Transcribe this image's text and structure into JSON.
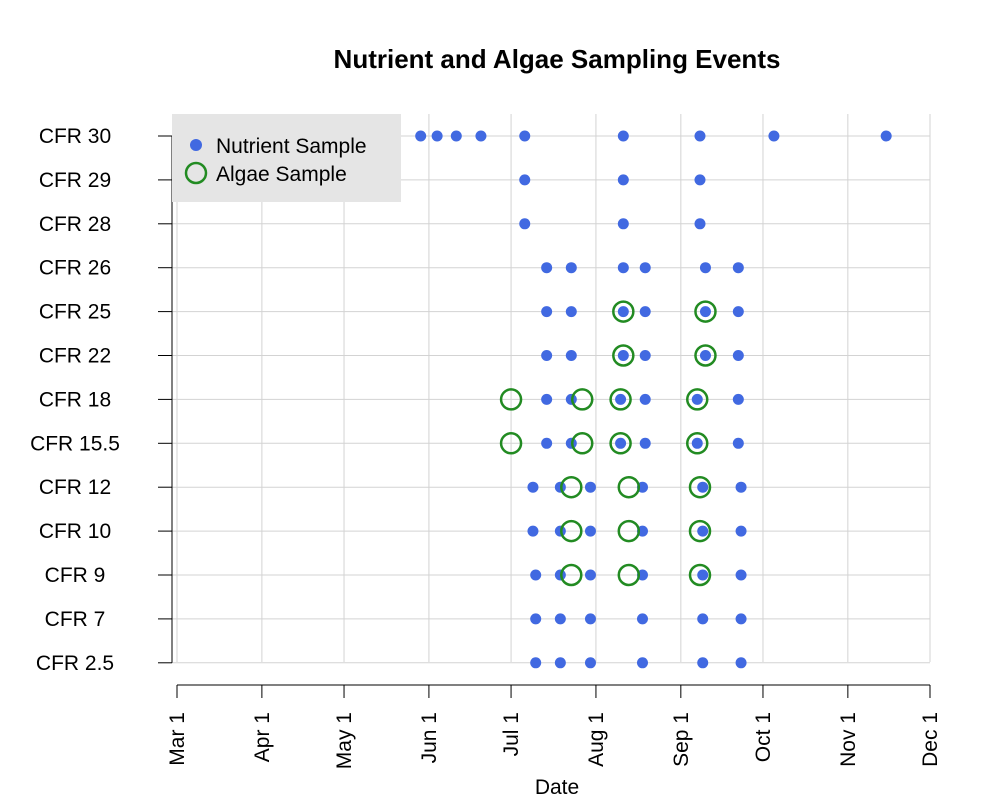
{
  "chart_data": {
    "type": "scatter",
    "title": "Nutrient and Algae Sampling Events",
    "xlabel": "Date",
    "ylabel": "",
    "x_axis": {
      "range": [
        "2023-03-01",
        "2023-12-01"
      ],
      "tick_dates": [
        "2023-03-01",
        "2023-04-01",
        "2023-05-01",
        "2023-06-01",
        "2023-07-01",
        "2023-08-01",
        "2023-09-01",
        "2023-10-01",
        "2023-11-01",
        "2023-12-01"
      ],
      "tick_labels": [
        "Mar 1",
        "Apr 1",
        "May 1",
        "Jun 1",
        "Jul 1",
        "Aug 1",
        "Sep 1",
        "Oct 1",
        "Nov 1",
        "Dec 1"
      ]
    },
    "stations": [
      "CFR 30",
      "CFR 29",
      "CFR 28",
      "CFR 26",
      "CFR 25",
      "CFR 22",
      "CFR 18",
      "CFR 15.5",
      "CFR 12",
      "CFR 10",
      "CFR 9",
      "CFR 7",
      "CFR 2.5"
    ],
    "grid": true,
    "legend": {
      "placement": "top-left",
      "entries": [
        {
          "label": "Nutrient Sample",
          "marker": "filled-circle",
          "color": "#4169E1"
        },
        {
          "label": "Algae Sample",
          "marker": "open-circle",
          "color": "#228B22"
        }
      ]
    },
    "series": [
      {
        "name": "Nutrient Sample",
        "color": "#4169E1",
        "points": [
          {
            "station": "CFR 30",
            "dates": [
              "2023-05-29",
              "2023-06-04",
              "2023-06-11",
              "2023-06-20",
              "2023-07-06",
              "2023-08-11",
              "2023-09-08",
              "2023-10-05",
              "2023-11-15"
            ]
          },
          {
            "station": "CFR 29",
            "dates": [
              "2023-07-06",
              "2023-08-11",
              "2023-09-08"
            ]
          },
          {
            "station": "CFR 28",
            "dates": [
              "2023-07-06",
              "2023-08-11",
              "2023-09-08"
            ]
          },
          {
            "station": "CFR 26",
            "dates": [
              "2023-07-14",
              "2023-07-23",
              "2023-08-11",
              "2023-08-19",
              "2023-09-10",
              "2023-09-22"
            ]
          },
          {
            "station": "CFR 25",
            "dates": [
              "2023-07-14",
              "2023-07-23",
              "2023-08-11",
              "2023-08-19",
              "2023-09-10",
              "2023-09-22"
            ]
          },
          {
            "station": "CFR 22",
            "dates": [
              "2023-07-14",
              "2023-07-23",
              "2023-08-11",
              "2023-08-19",
              "2023-09-10",
              "2023-09-22"
            ]
          },
          {
            "station": "CFR 18",
            "dates": [
              "2023-07-14",
              "2023-07-23",
              "2023-08-10",
              "2023-08-19",
              "2023-09-07",
              "2023-09-22"
            ]
          },
          {
            "station": "CFR 15.5",
            "dates": [
              "2023-07-14",
              "2023-07-23",
              "2023-08-10",
              "2023-08-19",
              "2023-09-07",
              "2023-09-22"
            ]
          },
          {
            "station": "CFR 12",
            "dates": [
              "2023-07-09",
              "2023-07-19",
              "2023-07-30",
              "2023-08-18",
              "2023-09-09",
              "2023-09-23"
            ]
          },
          {
            "station": "CFR 10",
            "dates": [
              "2023-07-09",
              "2023-07-19",
              "2023-07-30",
              "2023-08-18",
              "2023-09-09",
              "2023-09-23"
            ]
          },
          {
            "station": "CFR 9",
            "dates": [
              "2023-07-10",
              "2023-07-19",
              "2023-07-30",
              "2023-08-18",
              "2023-09-09",
              "2023-09-23"
            ]
          },
          {
            "station": "CFR 7",
            "dates": [
              "2023-07-10",
              "2023-07-19",
              "2023-07-30",
              "2023-08-18",
              "2023-09-09",
              "2023-09-23"
            ]
          },
          {
            "station": "CFR 2.5",
            "dates": [
              "2023-07-10",
              "2023-07-19",
              "2023-07-30",
              "2023-08-18",
              "2023-09-09",
              "2023-09-23"
            ]
          }
        ]
      },
      {
        "name": "Algae Sample",
        "color": "#228B22",
        "points": [
          {
            "station": "CFR 25",
            "dates": [
              "2023-08-11",
              "2023-09-10"
            ]
          },
          {
            "station": "CFR 22",
            "dates": [
              "2023-08-11",
              "2023-09-10"
            ]
          },
          {
            "station": "CFR 18",
            "dates": [
              "2023-07-01",
              "2023-07-27",
              "2023-08-10",
              "2023-09-07"
            ]
          },
          {
            "station": "CFR 15.5",
            "dates": [
              "2023-07-01",
              "2023-07-27",
              "2023-08-10",
              "2023-09-07"
            ]
          },
          {
            "station": "CFR 12",
            "dates": [
              "2023-07-23",
              "2023-08-13",
              "2023-09-08"
            ]
          },
          {
            "station": "CFR 10",
            "dates": [
              "2023-07-23",
              "2023-08-13",
              "2023-09-08"
            ]
          },
          {
            "station": "CFR 9",
            "dates": [
              "2023-07-23",
              "2023-08-13",
              "2023-09-08"
            ]
          }
        ]
      }
    ]
  }
}
